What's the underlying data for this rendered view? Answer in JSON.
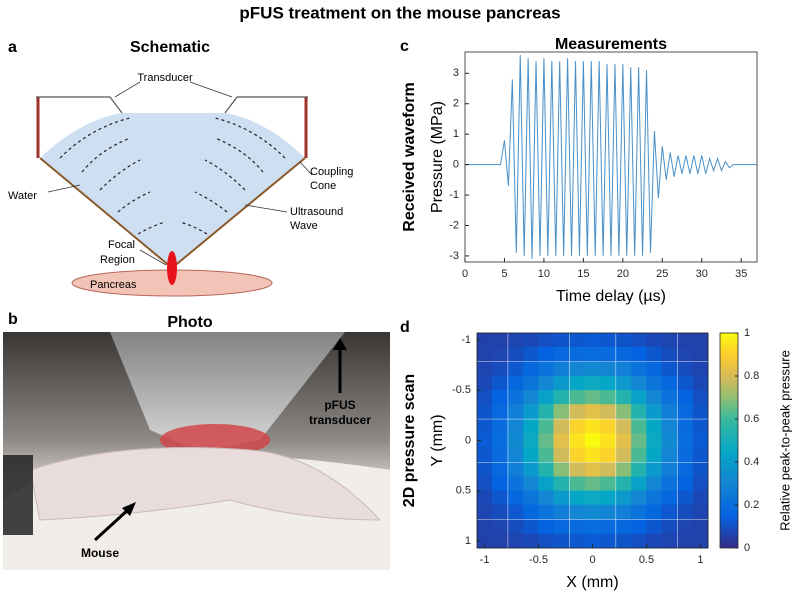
{
  "title": "pFUS treatment on the mouse pancreas",
  "panels": [
    {
      "letter": "a",
      "title": "Schematic",
      "labels": {
        "transducer": "Transducer",
        "coupling_cone": [
          "Coupling",
          "Cone"
        ],
        "water": "Water",
        "ultrasound_wave": [
          "Ultrasound",
          "Wave"
        ],
        "focal_region": [
          "Focal",
          "Region"
        ],
        "pancreas": "Pancreas"
      }
    },
    {
      "letter": "b",
      "title": "Photo",
      "labels": {
        "transducer": [
          "pFUS",
          "transducer"
        ],
        "mouse": "Mouse"
      }
    }
  ],
  "chart_data": [
    {
      "type": "line",
      "letter": "c",
      "title": "Measurements",
      "side_label": "Received waveform",
      "xlabel": "Time delay (µs)",
      "ylabel": "Pressure (MPa)",
      "color": "#4a90c8",
      "xlim": [
        0,
        37
      ],
      "xticks": [
        0,
        5,
        10,
        15,
        20,
        25,
        30,
        35
      ],
      "ylim": [
        -3.2,
        3.7
      ],
      "yticks": [
        -3,
        -2,
        -1,
        0,
        1,
        2,
        3
      ],
      "x": [
        0,
        4.5,
        5,
        5.5,
        6,
        6.5,
        7,
        7.5,
        8,
        8.5,
        9,
        9.5,
        10,
        10.5,
        11,
        11.5,
        12,
        12.5,
        13,
        13.5,
        14,
        14.5,
        15,
        15.5,
        16,
        16.5,
        17,
        17.5,
        18,
        18.5,
        19,
        19.5,
        20,
        20.5,
        21,
        21.5,
        22,
        22.5,
        23,
        23.5,
        24,
        24.5,
        25,
        25.5,
        26,
        26.5,
        27,
        27.5,
        28,
        28.5,
        29,
        29.5,
        30,
        30.5,
        31,
        31.5,
        32,
        32.5,
        33,
        33.5,
        34,
        37
      ],
      "values": [
        0,
        0,
        0.8,
        -0.7,
        2.8,
        -2.9,
        3.6,
        -3.0,
        3.5,
        -3.1,
        3.4,
        -3.0,
        3.5,
        -3.0,
        3.4,
        -3.0,
        3.4,
        -3.0,
        3.5,
        -3.0,
        3.4,
        -3.0,
        3.4,
        -3.0,
        3.4,
        -3.0,
        3.4,
        -3.0,
        3.3,
        -3.0,
        3.3,
        -3.0,
        3.3,
        -3.0,
        3.2,
        -3.0,
        3.2,
        -3.0,
        3.1,
        -2.9,
        1.1,
        -1.1,
        0.6,
        -0.5,
        0.4,
        -0.4,
        0.3,
        -0.3,
        0.3,
        -0.3,
        0.3,
        -0.3,
        0.3,
        -0.3,
        0.2,
        -0.2,
        0.2,
        -0.2,
        0.1,
        -0.1,
        0,
        0
      ]
    },
    {
      "type": "heatmap",
      "letter": "d",
      "side_label": "2D pressure scan",
      "xlabel": "X (mm)",
      "ylabel": "Y (mm)",
      "y_reversed": true,
      "xlim": [
        -1.07,
        1.07
      ],
      "xticks": [
        -1,
        -0.5,
        0,
        0.5,
        1
      ],
      "ylim": [
        -1.07,
        1.07
      ],
      "yticks": [
        -1,
        -0.5,
        0,
        0.5,
        1
      ],
      "x": [
        -1,
        -0.86,
        -0.71,
        -0.57,
        -0.43,
        -0.29,
        -0.14,
        0,
        0.14,
        0.29,
        0.43,
        0.57,
        0.71,
        0.86,
        1
      ],
      "y": [
        -1,
        -0.86,
        -0.71,
        -0.57,
        -0.43,
        -0.29,
        -0.14,
        0,
        0.14,
        0.29,
        0.43,
        0.57,
        0.71,
        0.86,
        1
      ],
      "z": [
        [
          0.06,
          0.06,
          0.07,
          0.08,
          0.1,
          0.11,
          0.12,
          0.13,
          0.12,
          0.11,
          0.1,
          0.08,
          0.07,
          0.06,
          0.06
        ],
        [
          0.06,
          0.07,
          0.09,
          0.12,
          0.15,
          0.18,
          0.19,
          0.2,
          0.19,
          0.18,
          0.15,
          0.12,
          0.09,
          0.07,
          0.06
        ],
        [
          0.07,
          0.09,
          0.12,
          0.17,
          0.22,
          0.27,
          0.3,
          0.32,
          0.3,
          0.27,
          0.22,
          0.17,
          0.12,
          0.09,
          0.07
        ],
        [
          0.08,
          0.12,
          0.17,
          0.23,
          0.31,
          0.39,
          0.45,
          0.47,
          0.45,
          0.39,
          0.31,
          0.23,
          0.17,
          0.12,
          0.08
        ],
        [
          0.1,
          0.15,
          0.22,
          0.31,
          0.43,
          0.54,
          0.62,
          0.65,
          0.62,
          0.54,
          0.43,
          0.31,
          0.22,
          0.15,
          0.1
        ],
        [
          0.11,
          0.18,
          0.27,
          0.39,
          0.54,
          0.69,
          0.79,
          0.83,
          0.79,
          0.69,
          0.54,
          0.39,
          0.27,
          0.18,
          0.11
        ],
        [
          0.12,
          0.19,
          0.3,
          0.45,
          0.62,
          0.79,
          0.91,
          0.95,
          0.91,
          0.79,
          0.62,
          0.45,
          0.3,
          0.19,
          0.12
        ],
        [
          0.13,
          0.2,
          0.32,
          0.47,
          0.65,
          0.83,
          0.95,
          1,
          0.95,
          0.83,
          0.65,
          0.47,
          0.32,
          0.2,
          0.13
        ],
        [
          0.12,
          0.19,
          0.3,
          0.45,
          0.62,
          0.79,
          0.91,
          0.95,
          0.91,
          0.79,
          0.62,
          0.45,
          0.3,
          0.19,
          0.12
        ],
        [
          0.11,
          0.18,
          0.27,
          0.39,
          0.54,
          0.69,
          0.79,
          0.83,
          0.79,
          0.69,
          0.54,
          0.39,
          0.27,
          0.18,
          0.11
        ],
        [
          0.1,
          0.15,
          0.22,
          0.31,
          0.43,
          0.54,
          0.62,
          0.65,
          0.62,
          0.54,
          0.43,
          0.31,
          0.22,
          0.15,
          0.1
        ],
        [
          0.08,
          0.12,
          0.17,
          0.23,
          0.31,
          0.39,
          0.45,
          0.47,
          0.45,
          0.39,
          0.31,
          0.23,
          0.17,
          0.12,
          0.08
        ],
        [
          0.07,
          0.09,
          0.12,
          0.17,
          0.22,
          0.27,
          0.3,
          0.32,
          0.3,
          0.27,
          0.22,
          0.17,
          0.12,
          0.09,
          0.07
        ],
        [
          0.06,
          0.07,
          0.09,
          0.12,
          0.15,
          0.18,
          0.19,
          0.2,
          0.19,
          0.18,
          0.15,
          0.12,
          0.09,
          0.07,
          0.06
        ],
        [
          0.06,
          0.06,
          0.07,
          0.08,
          0.1,
          0.11,
          0.12,
          0.13,
          0.12,
          0.11,
          0.1,
          0.08,
          0.07,
          0.06,
          0.06
        ]
      ],
      "colorbar": {
        "label": "Relative peak-to-peak pressure",
        "lim": [
          0,
          1
        ],
        "ticks": [
          0,
          0.2,
          0.4,
          0.6,
          0.8,
          1
        ]
      }
    }
  ]
}
